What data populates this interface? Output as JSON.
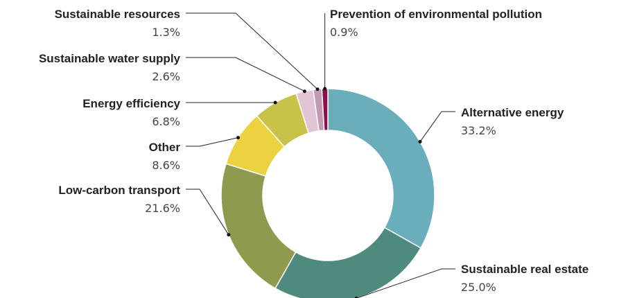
{
  "chart_data": {
    "type": "pie",
    "subtype": "donut",
    "title": "",
    "slices": [
      {
        "label": "Alternative energy",
        "value": 33.2,
        "value_text": "33.2%",
        "color": "#6aaebc"
      },
      {
        "label": "Sustainable real estate",
        "value": 25.0,
        "value_text": "25.0%",
        "color": "#4e8b7e"
      },
      {
        "label": "Low-carbon transport",
        "value": 21.6,
        "value_text": "21.6%",
        "color": "#8f9a4e"
      },
      {
        "label": "Other",
        "value": 8.6,
        "value_text": "8.6%",
        "color": "#ecd241"
      },
      {
        "label": "Energy efficiency",
        "value": 6.8,
        "value_text": "6.8%",
        "color": "#c8c24a"
      },
      {
        "label": "Sustainable water supply",
        "value": 2.6,
        "value_text": "2.6%",
        "color": "#e2c5d4"
      },
      {
        "label": "Sustainable resources",
        "value": 1.3,
        "value_text": "1.3%",
        "color": "#c39ab2"
      },
      {
        "label": "Prevention of environmental pollution",
        "value": 0.9,
        "value_text": "0.9%",
        "color": "#8c0f4e"
      }
    ]
  }
}
